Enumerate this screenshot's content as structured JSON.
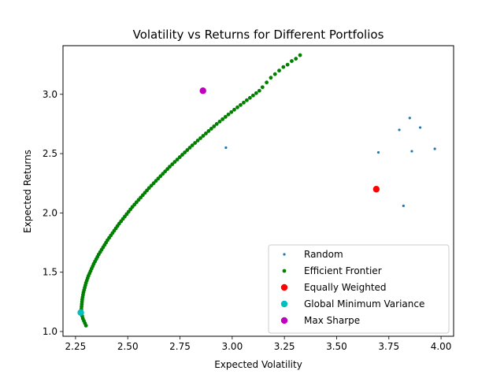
{
  "chart_data": {
    "type": "scatter",
    "title": "Volatility vs Returns for Different Portfolios",
    "xlabel": "Expected Volatility",
    "ylabel": "Expected Returns",
    "xlim": [
      2.19,
      4.06
    ],
    "ylim": [
      0.96,
      3.41
    ],
    "xticks": [
      2.25,
      2.5,
      2.75,
      3.0,
      3.25,
      3.5,
      3.75,
      4.0
    ],
    "xtick_labels": [
      "2.25",
      "2.50",
      "2.75",
      "3.00",
      "3.25",
      "3.50",
      "3.75",
      "4.00"
    ],
    "yticks": [
      1.0,
      1.5,
      2.0,
      2.5,
      3.0
    ],
    "ytick_labels": [
      "1.0",
      "1.5",
      "2.0",
      "2.5",
      "3.0"
    ],
    "grid": false,
    "legend_position": "lower right",
    "series": [
      {
        "name": "Random",
        "color": "#1f77b4",
        "marker": "small-dot",
        "points": [
          [
            2.97,
            2.55
          ],
          [
            3.7,
            2.51
          ],
          [
            3.8,
            2.7
          ],
          [
            3.85,
            2.8
          ],
          [
            3.86,
            2.52
          ],
          [
            3.9,
            2.72
          ],
          [
            3.97,
            2.54
          ],
          [
            3.82,
            2.06
          ]
        ]
      },
      {
        "name": "Efficient Frontier",
        "color": "#008000",
        "marker": "dot",
        "points": [
          [
            2.3,
            1.05
          ],
          [
            2.295,
            1.07
          ],
          [
            2.29,
            1.09
          ],
          [
            2.285,
            1.11
          ],
          [
            2.282,
            1.13
          ],
          [
            2.28,
            1.15
          ],
          [
            2.279,
            1.17
          ],
          [
            2.278,
            1.19
          ],
          [
            2.279,
            1.21
          ],
          [
            2.28,
            1.23
          ],
          [
            2.281,
            1.25
          ],
          [
            2.282,
            1.27
          ],
          [
            2.284,
            1.29
          ],
          [
            2.286,
            1.31
          ],
          [
            2.288,
            1.33
          ],
          [
            2.291,
            1.35
          ],
          [
            2.294,
            1.37
          ],
          [
            2.297,
            1.39
          ],
          [
            2.3,
            1.41
          ],
          [
            2.304,
            1.43
          ],
          [
            2.308,
            1.45
          ],
          [
            2.312,
            1.47
          ],
          [
            2.317,
            1.49
          ],
          [
            2.322,
            1.51
          ],
          [
            2.327,
            1.53
          ],
          [
            2.332,
            1.55
          ],
          [
            2.337,
            1.57
          ],
          [
            2.343,
            1.59
          ],
          [
            2.349,
            1.61
          ],
          [
            2.355,
            1.63
          ],
          [
            2.361,
            1.65
          ],
          [
            2.368,
            1.67
          ],
          [
            2.375,
            1.69
          ],
          [
            2.382,
            1.71
          ],
          [
            2.389,
            1.73
          ],
          [
            2.396,
            1.75
          ],
          [
            2.403,
            1.77
          ],
          [
            2.411,
            1.79
          ],
          [
            2.419,
            1.81
          ],
          [
            2.427,
            1.83
          ],
          [
            2.435,
            1.85
          ],
          [
            2.443,
            1.87
          ],
          [
            2.451,
            1.89
          ],
          [
            2.459,
            1.91
          ],
          [
            2.468,
            1.93
          ],
          [
            2.477,
            1.95
          ],
          [
            2.486,
            1.97
          ],
          [
            2.495,
            1.99
          ],
          [
            2.504,
            2.01
          ],
          [
            2.513,
            2.03
          ],
          [
            2.522,
            2.05
          ],
          [
            2.532,
            2.07
          ],
          [
            2.542,
            2.09
          ],
          [
            2.552,
            2.11
          ],
          [
            2.562,
            2.13
          ],
          [
            2.572,
            2.15
          ],
          [
            2.582,
            2.17
          ],
          [
            2.592,
            2.19
          ],
          [
            2.602,
            2.21
          ],
          [
            2.613,
            2.23
          ],
          [
            2.624,
            2.25
          ],
          [
            2.635,
            2.27
          ],
          [
            2.646,
            2.29
          ],
          [
            2.657,
            2.31
          ],
          [
            2.668,
            2.33
          ],
          [
            2.679,
            2.35
          ],
          [
            2.69,
            2.37
          ],
          [
            2.701,
            2.39
          ],
          [
            2.713,
            2.41
          ],
          [
            2.725,
            2.43
          ],
          [
            2.737,
            2.45
          ],
          [
            2.749,
            2.47
          ],
          [
            2.761,
            2.49
          ],
          [
            2.773,
            2.51
          ],
          [
            2.785,
            2.53
          ],
          [
            2.797,
            2.55
          ],
          [
            2.809,
            2.57
          ],
          [
            2.822,
            2.59
          ],
          [
            2.835,
            2.61
          ],
          [
            2.848,
            2.63
          ],
          [
            2.861,
            2.65
          ],
          [
            2.874,
            2.67
          ],
          [
            2.887,
            2.69
          ],
          [
            2.9,
            2.71
          ],
          [
            2.913,
            2.73
          ],
          [
            2.926,
            2.75
          ],
          [
            2.94,
            2.77
          ],
          [
            2.954,
            2.79
          ],
          [
            2.968,
            2.81
          ],
          [
            2.982,
            2.83
          ],
          [
            2.996,
            2.85
          ],
          [
            3.01,
            2.87
          ],
          [
            3.025,
            2.89
          ],
          [
            3.04,
            2.91
          ],
          [
            3.055,
            2.93
          ],
          [
            3.07,
            2.95
          ],
          [
            3.085,
            2.97
          ],
          [
            3.1,
            2.99
          ],
          [
            3.115,
            3.01
          ],
          [
            3.13,
            3.03
          ],
          [
            3.145,
            3.06
          ],
          [
            3.165,
            3.1
          ],
          [
            3.185,
            3.14
          ],
          [
            3.205,
            3.17
          ],
          [
            3.225,
            3.2
          ],
          [
            3.245,
            3.23
          ],
          [
            3.265,
            3.25
          ],
          [
            3.285,
            3.28
          ],
          [
            3.305,
            3.3
          ],
          [
            3.325,
            3.33
          ]
        ]
      },
      {
        "name": "Equally Weighted",
        "color": "#ff0000",
        "marker": "large-dot",
        "points": [
          [
            3.69,
            2.2
          ]
        ]
      },
      {
        "name": "Global Minimum Variance",
        "color": "#00bfbf",
        "marker": "large-dot",
        "points": [
          [
            2.275,
            1.16
          ]
        ]
      },
      {
        "name": "Max Sharpe",
        "color": "#bf00bf",
        "marker": "large-dot",
        "points": [
          [
            2.86,
            3.03
          ]
        ]
      }
    ]
  }
}
